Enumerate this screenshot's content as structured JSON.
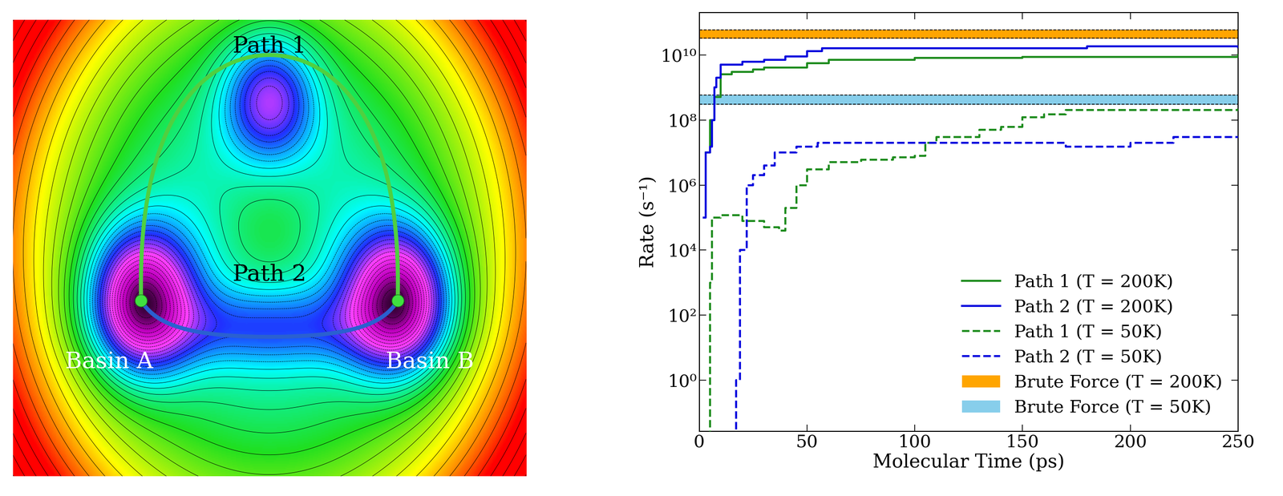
{
  "diagram": {
    "paths": [
      "Path 1",
      "Path 2"
    ],
    "basins": [
      "Basin A",
      "Basin B"
    ]
  },
  "chart_data": {
    "type": "line",
    "x_label": "Molecular Time (ps)",
    "y_label": "Rate (s⁻¹)",
    "log": "y",
    "legend": "lower right",
    "xlim": [
      0,
      250
    ],
    "xticks": [
      0,
      50,
      100,
      150,
      200,
      250
    ],
    "ylim": [
      0.027,
      200000000000.0
    ],
    "yticks": [
      {
        "value": 1,
        "label": "10⁰"
      },
      {
        "value": 100,
        "label": "10²"
      },
      {
        "value": 10000,
        "label": "10⁴"
      },
      {
        "value": 1000000,
        "label": "10⁶"
      },
      {
        "value": 100000000,
        "label": "10⁸"
      },
      {
        "value": 10000000000,
        "label": "10¹⁰"
      }
    ],
    "series": [
      {
        "name": "Path 1 (T = 200K)",
        "color": "#1e8c1e",
        "line_style": "solid",
        "x": [
          3,
          5,
          7,
          10,
          15,
          25,
          30,
          50,
          60,
          100,
          150,
          250
        ],
        "values": [
          10000000.0,
          100000000.0,
          500000000.0,
          2500000000.0,
          3000000000.0,
          3500000000.0,
          4000000000.0,
          5500000000.0,
          7000000000.0,
          8000000000.0,
          8500000000.0,
          10000000000.0
        ]
      },
      {
        "name": "Path 2 (T = 200K)",
        "color": "#0000dd",
        "line_style": "solid",
        "x": [
          2,
          3,
          5,
          6,
          7,
          8,
          10,
          20,
          30,
          40,
          50,
          57,
          100,
          180,
          250
        ],
        "values": [
          100000.0,
          10000000.0,
          15000000.0,
          100000000.0,
          1000000000.0,
          2000000000.0,
          5000000000.0,
          6000000000.0,
          7000000000.0,
          9000000000.0,
          13000000000.0,
          16000000000.0,
          16000000000.0,
          18000000000.0,
          17000000000.0
        ]
      },
      {
        "name": "Path 1 (T = 50K)",
        "color": "#1e8c1e",
        "line_style": "dashed",
        "x": [
          4,
          5,
          6,
          10,
          20,
          30,
          37,
          40,
          45,
          50,
          60,
          75,
          90,
          100,
          105,
          110,
          130,
          140,
          150,
          160,
          170,
          250
        ],
        "values": [
          0.02,
          1000,
          100000,
          120000,
          80000,
          50000,
          40000,
          200000,
          1000000,
          3000000,
          5000000,
          6000000,
          7000000,
          8000000,
          20000000,
          30000000,
          50000000,
          60000000,
          120000000,
          150000000,
          200000000,
          220000000
        ]
      },
      {
        "name": "Path 2 (T = 50K)",
        "color": "#0000dd",
        "line_style": "dashed",
        "x": [
          15,
          17,
          19,
          22,
          25,
          30,
          35,
          45,
          55,
          70,
          100,
          130,
          170,
          200,
          220,
          250
        ],
        "values": [
          0.02,
          1,
          10000,
          1000000,
          2000000,
          4000000,
          10000000,
          15000000,
          20000000,
          20000000,
          20000000,
          20000000,
          15000000,
          20000000,
          30000000,
          30000000
        ]
      },
      {
        "name": "Brute Force (T = 200K)",
        "type": "band",
        "color": "#ffa500",
        "lower": 32000000000.0,
        "upper": 57000000000.0
      },
      {
        "name": "Brute Force (T = 50K)",
        "type": "band",
        "color": "#87ceeb",
        "lower": 300000000.0,
        "upper": 580000000.0
      }
    ]
  }
}
